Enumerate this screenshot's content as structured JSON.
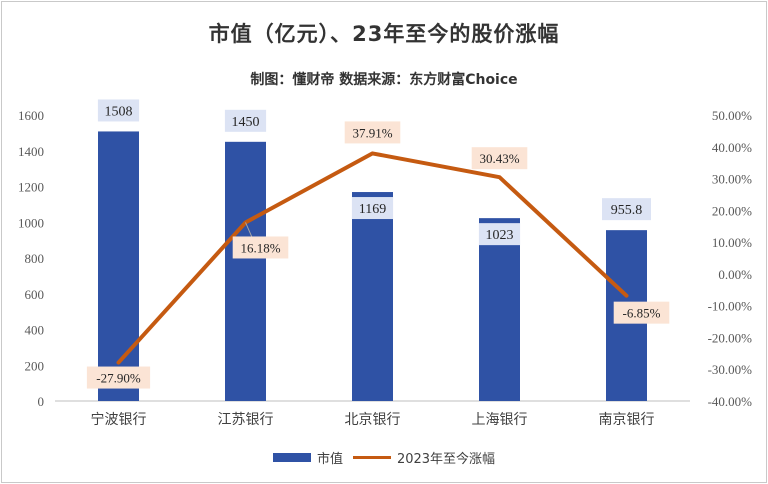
{
  "title": "市值（亿元）、23年至今的股价涨幅",
  "subtitle": "制图：懂财帝   数据来源：东方财富Choice",
  "chart_data": {
    "type": "bar",
    "categories": [
      "宁波银行",
      "江苏银行",
      "北京银行",
      "上海银行",
      "南京银行"
    ],
    "series": [
      {
        "name": "市值",
        "type": "bar",
        "axis": "left",
        "values": [
          1508,
          1450,
          1169,
          1023,
          955.8
        ],
        "labels": [
          "1508",
          "1450",
          "1169",
          "1023",
          "955.8"
        ],
        "color": "#2f52a5",
        "label_bg": "#dce3f4"
      },
      {
        "name": "2023年至今涨幅",
        "type": "line",
        "axis": "right",
        "values": [
          -27.9,
          16.18,
          37.91,
          30.43,
          -6.85
        ],
        "labels": [
          "-27.90%",
          "16.18%",
          "37.91%",
          "30.43%",
          "-6.85%"
        ],
        "color": "#c55a11",
        "label_bg": "#fbe4d5"
      }
    ],
    "y_left": {
      "ylim": [
        0,
        1600
      ],
      "ticks": [
        "0",
        "200",
        "400",
        "600",
        "800",
        "1000",
        "1200",
        "1400",
        "1600"
      ]
    },
    "y_right": {
      "ylim": [
        -40,
        50
      ],
      "ticks": [
        "-40.00%",
        "-30.00%",
        "-20.00%",
        "-10.00%",
        "0.00%",
        "10.00%",
        "20.00%",
        "30.00%",
        "40.00%",
        "50.00%"
      ]
    },
    "grid": false,
    "legend_position": "bottom"
  }
}
